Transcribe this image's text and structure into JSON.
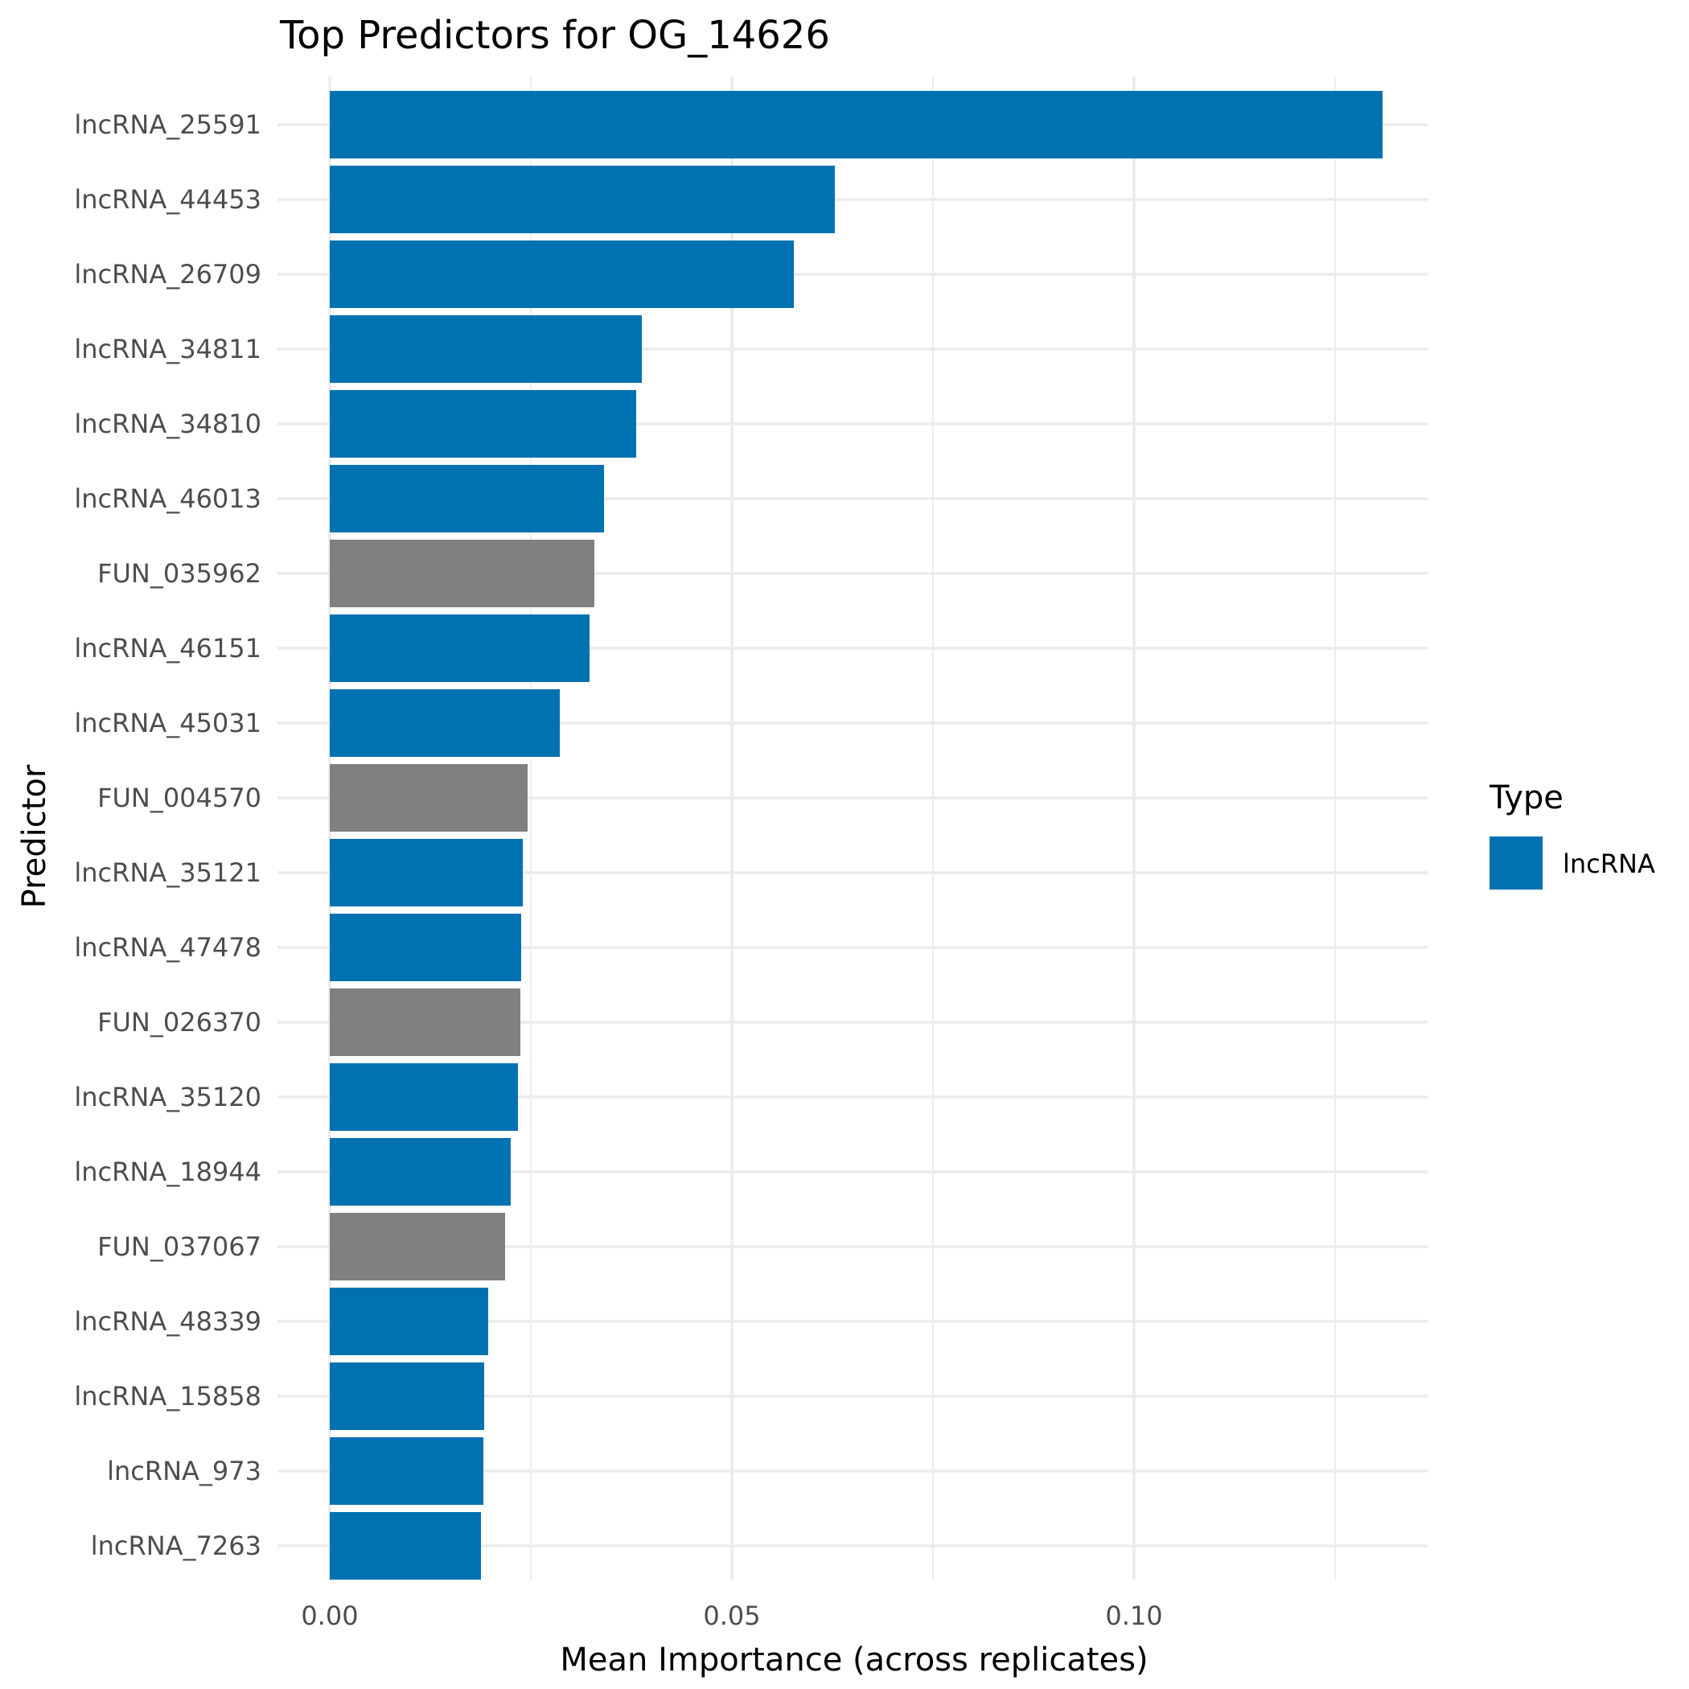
{
  "chart_data": {
    "type": "bar",
    "orientation": "horizontal",
    "title": "Top Predictors for OG_14626",
    "xlabel": "Mean Importance (across replicates)",
    "ylabel": "Predictor",
    "xlim": [
      0,
      0.137
    ],
    "x_ticks": [
      0.0,
      0.05,
      0.1
    ],
    "x_tick_labels": [
      "0.00",
      "0.05",
      "0.10"
    ],
    "x_minor_ticks": [
      0.025,
      0.075,
      0.125
    ],
    "grid": true,
    "legend": {
      "title": "Type",
      "position": "right",
      "entries": [
        {
          "label": "lncRNA",
          "color": "#0072B2"
        }
      ]
    },
    "colors": {
      "lncRNA": "#0072B2",
      "other": "#808080"
    },
    "categories": [
      "lncRNA_25591",
      "lncRNA_44453",
      "lncRNA_26709",
      "lncRNA_34811",
      "lncRNA_34810",
      "lncRNA_46013",
      "FUN_035962",
      "lncRNA_46151",
      "lncRNA_45031",
      "FUN_004570",
      "lncRNA_35121",
      "lncRNA_47478",
      "FUN_026370",
      "lncRNA_35120",
      "lncRNA_18944",
      "FUN_037067",
      "lncRNA_48339",
      "lncRNA_15858",
      "lncRNA_973",
      "lncRNA_7263"
    ],
    "values": [
      0.1309,
      0.0628,
      0.0577,
      0.0388,
      0.0381,
      0.0341,
      0.0329,
      0.0323,
      0.0286,
      0.0246,
      0.024,
      0.0238,
      0.0237,
      0.0234,
      0.0225,
      0.0218,
      0.0197,
      0.0192,
      0.0191,
      0.0188
    ],
    "types": [
      "lncRNA",
      "lncRNA",
      "lncRNA",
      "lncRNA",
      "lncRNA",
      "lncRNA",
      "other",
      "lncRNA",
      "lncRNA",
      "other",
      "lncRNA",
      "lncRNA",
      "other",
      "lncRNA",
      "lncRNA",
      "other",
      "lncRNA",
      "lncRNA",
      "lncRNA",
      "lncRNA"
    ]
  }
}
